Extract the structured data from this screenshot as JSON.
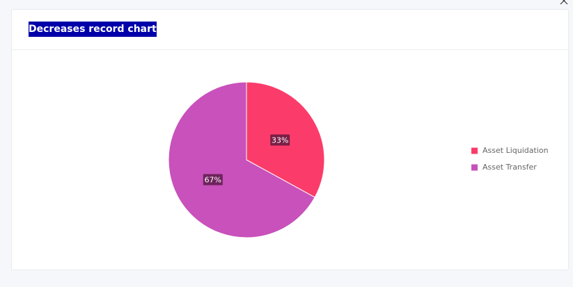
{
  "chart_data": {
    "type": "pie",
    "title": "Decreases record chart",
    "categories": [
      "Asset Liquidation",
      "Asset Transfer"
    ],
    "values": [
      33,
      67
    ],
    "value_labels": [
      "33%",
      "67%"
    ],
    "colors": [
      "#fb3c6a",
      "#c851bb"
    ],
    "legend": "right"
  }
}
